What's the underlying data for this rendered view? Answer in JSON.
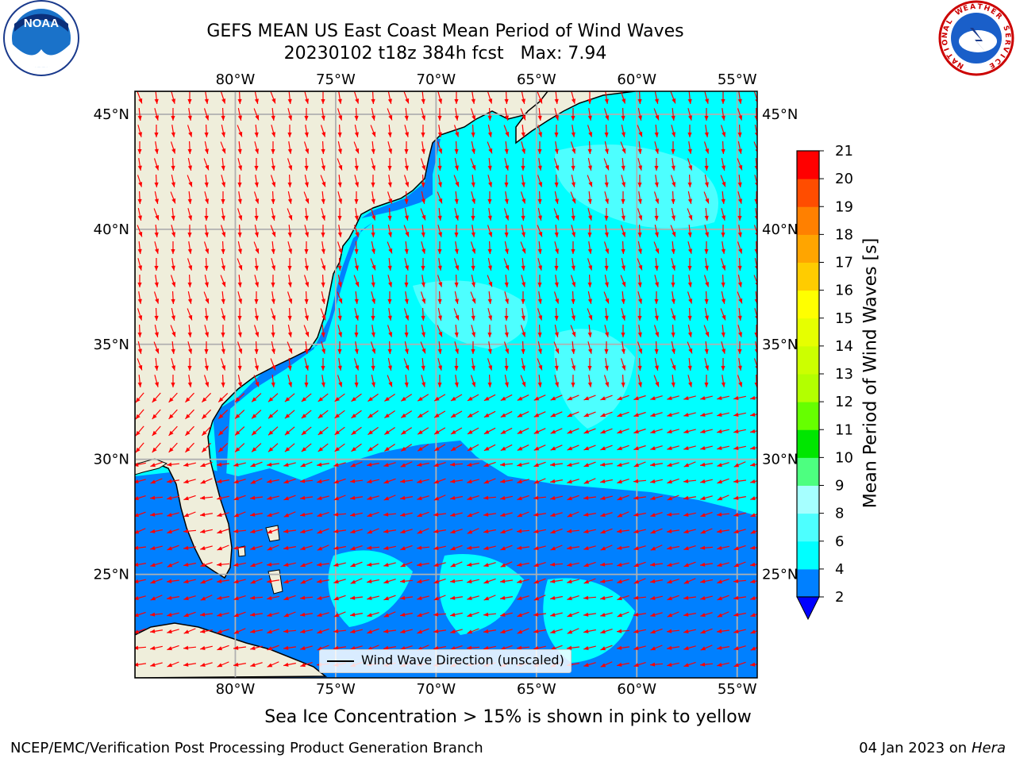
{
  "title": {
    "line1": "GEFS MEAN US East Coast Mean Period of Wind Waves",
    "line2": "20230102 t18z 384h fcst   Max: 7.94"
  },
  "map": {
    "lon_labels": [
      "80°W",
      "75°W",
      "70°W",
      "65°W",
      "60°W",
      "55°W"
    ],
    "lat_labels": [
      "45°N",
      "40°N",
      "35°N",
      "30°N",
      "25°N"
    ],
    "lon_range": [
      -85,
      -54
    ],
    "lat_range": [
      20.5,
      46
    ],
    "colors": {
      "land": "#efeedb",
      "ocean_light": "#00ffff",
      "ocean_medium": "#4dffff",
      "ocean_dark": "#0080ff",
      "arrow": "#ff0000",
      "grid": "#b0b0b0"
    },
    "legend_text": "Wind Wave Direction (unscaled)"
  },
  "colorbar": {
    "label": "Mean Period of Wind Waves [s]",
    "ticks": [
      "2",
      "4",
      "6",
      "8",
      "9",
      "10",
      "11",
      "12",
      "13",
      "14",
      "15",
      "16",
      "17",
      "18",
      "19",
      "20",
      "21"
    ],
    "bins": [
      {
        "from": 2,
        "to": 4,
        "color": "#0080ff"
      },
      {
        "from": 4,
        "to": 6,
        "color": "#00ffff"
      },
      {
        "from": 6,
        "to": 8,
        "color": "#4dffff"
      },
      {
        "from": 8,
        "to": 9,
        "color": "#a6ffff"
      },
      {
        "from": 9,
        "to": 10,
        "color": "#4dff80"
      },
      {
        "from": 10,
        "to": 11,
        "color": "#00e600"
      },
      {
        "from": 11,
        "to": 12,
        "color": "#66ff00"
      },
      {
        "from": 12,
        "to": 13,
        "color": "#b3ff00"
      },
      {
        "from": 13,
        "to": 14,
        "color": "#ccff00"
      },
      {
        "from": 14,
        "to": 15,
        "color": "#e6ff00"
      },
      {
        "from": 15,
        "to": 16,
        "color": "#ffff00"
      },
      {
        "from": 16,
        "to": 17,
        "color": "#ffcc00"
      },
      {
        "from": 17,
        "to": 18,
        "color": "#ffa500"
      },
      {
        "from": 18,
        "to": 19,
        "color": "#ff8000"
      },
      {
        "from": 19,
        "to": 20,
        "color": "#ff4d00"
      },
      {
        "from": 20,
        "to": 21,
        "color": "#ff0000"
      }
    ],
    "under_color": "#0000ff"
  },
  "note": "Sea Ice Concentration > 15% is shown in pink to yellow",
  "footer": {
    "left": "NCEP/EMC/Verification Post Processing Product Generation Branch",
    "right_prefix": "04 Jan 2023 on",
    "right_host": "Hera"
  },
  "logos": {
    "noaa": {
      "text": "NOAA",
      "icon": "noaa-logo-icon"
    },
    "nws": {
      "icon": "nws-logo-icon",
      "ring_text": "NATIONAL WEATHER SERVICE"
    }
  }
}
